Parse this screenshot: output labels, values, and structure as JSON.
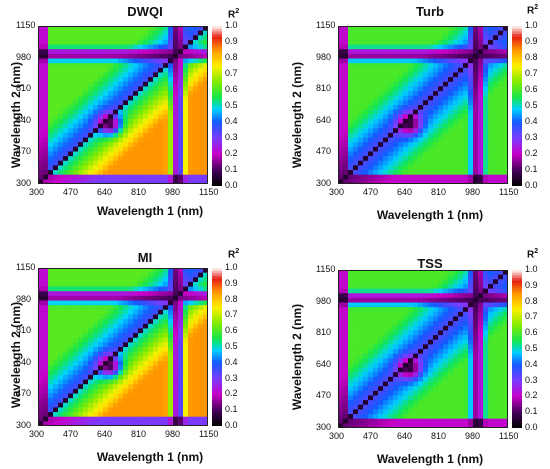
{
  "chart_data": [
    {
      "type": "heatmap",
      "title": "DWQI",
      "xlabel": "Wavelength 1 (nm)",
      "ylabel": "Wavelength 2 (nm)",
      "x_ticks": [
        "300",
        "470",
        "640",
        "810",
        "980",
        "1150"
      ],
      "y_ticks": [
        "300",
        "470",
        "640",
        "810",
        "980",
        "1150"
      ],
      "xlim": [
        300,
        1150
      ],
      "ylim": [
        300,
        1150
      ],
      "colorbar": {
        "title": "R",
        "title_sup": "2",
        "ticks": [
          "0.0",
          "0.1",
          "0.2",
          "0.3",
          "0.4",
          "0.5",
          "0.6",
          "0.7",
          "0.8",
          "0.9",
          "1.0"
        ],
        "range": [
          0,
          1
        ]
      },
      "peak_r2": 0.85
    },
    {
      "type": "heatmap",
      "title": "Turb",
      "xlabel": "Wavelength 1 (nm)",
      "ylabel": "Wavelength 2 (nm)",
      "x_ticks": [
        "300",
        "470",
        "640",
        "810",
        "980",
        "1150"
      ],
      "y_ticks": [
        "300",
        "470",
        "640",
        "810",
        "980",
        "1150"
      ],
      "xlim": [
        300,
        1150
      ],
      "ylim": [
        300,
        1150
      ],
      "colorbar": {
        "title": "R",
        "title_sup": "2",
        "ticks": [
          "0.0",
          "0.1",
          "0.2",
          "0.3",
          "0.4",
          "0.5",
          "0.6",
          "0.7",
          "0.8",
          "0.9",
          "1.0"
        ],
        "range": [
          0,
          1
        ]
      },
      "peak_r2": 0.6
    },
    {
      "type": "heatmap",
      "title": "MI",
      "xlabel": "Wavelength 1 (nm)",
      "ylabel": "Wavelength 2 (nm)",
      "x_ticks": [
        "300",
        "470",
        "640",
        "810",
        "980",
        "1150"
      ],
      "y_ticks": [
        "300",
        "470",
        "640",
        "810",
        "980",
        "1150"
      ],
      "xlim": [
        300,
        1150
      ],
      "ylim": [
        300,
        1150
      ],
      "colorbar": {
        "title": "R",
        "title_sup": "2",
        "ticks": [
          "0.0",
          "0.1",
          "0.2",
          "0.3",
          "0.4",
          "0.5",
          "0.6",
          "0.7",
          "0.8",
          "0.9",
          "1.0"
        ],
        "range": [
          0,
          1
        ]
      },
      "peak_r2": 0.85
    },
    {
      "type": "heatmap",
      "title": "TSS",
      "xlabel": "Wavelength 1 (nm)",
      "ylabel": "Wavelength 2 (nm)",
      "x_ticks": [
        "300",
        "470",
        "640",
        "810",
        "980",
        "1150"
      ],
      "y_ticks": [
        "300",
        "470",
        "640",
        "810",
        "980",
        "1150"
      ],
      "xlim": [
        300,
        1150
      ],
      "ylim": [
        300,
        1150
      ],
      "colorbar": {
        "title": "R",
        "title_sup": "2",
        "ticks": [
          "0.0",
          "0.1",
          "0.2",
          "0.3",
          "0.4",
          "0.5",
          "0.6",
          "0.7",
          "0.8",
          "0.9",
          "1.0"
        ],
        "range": [
          0,
          1
        ]
      },
      "peak_r2": 0.6
    }
  ]
}
